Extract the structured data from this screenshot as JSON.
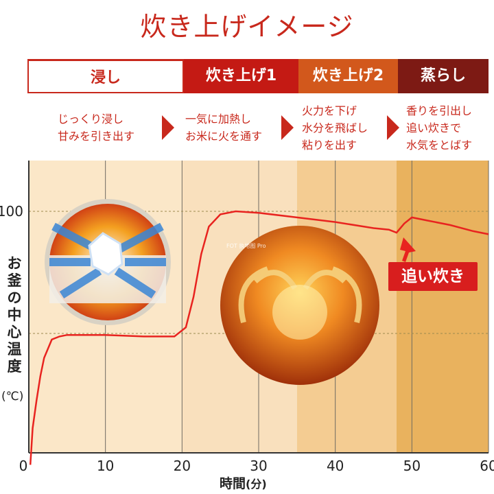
{
  "title": "炊き上げイメージ",
  "phases": [
    {
      "label": "浸し",
      "lines": [
        "じっくり浸し",
        "甘みを引き出す"
      ],
      "color": "#ffffff"
    },
    {
      "label": "炊き上げ1",
      "lines": [
        "一気に加熱し",
        "お米に火を通す"
      ],
      "color": "#c41a14"
    },
    {
      "label": "炊き上げ2",
      "lines": [
        "火力を下げ",
        "水分を飛ばし",
        "粘りを出す"
      ],
      "color": "#d2581c"
    },
    {
      "label": "蒸らし",
      "lines": [
        "香りを引出し",
        "追い炊きで",
        "水気をとばす"
      ],
      "color": "#7d1a14"
    }
  ],
  "callout": "追い炊き",
  "watermark": "FOT 执地图 Pro",
  "ylabel_chars": [
    "お",
    "釜",
    "の",
    "中",
    "心",
    "温",
    "度"
  ],
  "yunit": "(℃)",
  "xlabel_main": "時間",
  "xlabel_unit": "(分)",
  "chart_data": {
    "type": "line",
    "xlabel": "時間(分)",
    "ylabel": "お釜の中心温度(℃)",
    "xlim": [
      0,
      60
    ],
    "x_ticks": [
      0,
      10,
      20,
      30,
      40,
      50,
      60
    ],
    "y_ticks": [
      100
    ],
    "grid": true,
    "phase_bands": [
      {
        "label": "浸し",
        "start": 0,
        "end": 20
      },
      {
        "label": "炊き上げ1",
        "start": 20,
        "end": 35
      },
      {
        "label": "炊き上げ2",
        "start": 35,
        "end": 48
      },
      {
        "label": "蒸らし",
        "start": 48,
        "end": 60
      }
    ],
    "series": [
      {
        "x": [
          0.2,
          0.5,
          1.0,
          1.5,
          2.0,
          3.0,
          4.0,
          5.0,
          7.0,
          10.0,
          15.0,
          19.0,
          20.5,
          21.5,
          22.5,
          23.5,
          25.0,
          27.0,
          30.0,
          35.0,
          40.0,
          45.0,
          47.0,
          48.0,
          49.0,
          50.0,
          52.0,
          55.0,
          58.0,
          60.0
        ],
        "y": [
          17,
          29,
          38,
          46,
          52,
          58,
          59,
          59.5,
          59.5,
          59.5,
          59,
          59,
          62,
          72,
          86,
          95,
          99,
          100,
          99.5,
          98,
          96.5,
          94.5,
          94,
          93,
          96,
          98,
          97,
          95.5,
          93.5,
          92.5
        ]
      }
    ]
  }
}
